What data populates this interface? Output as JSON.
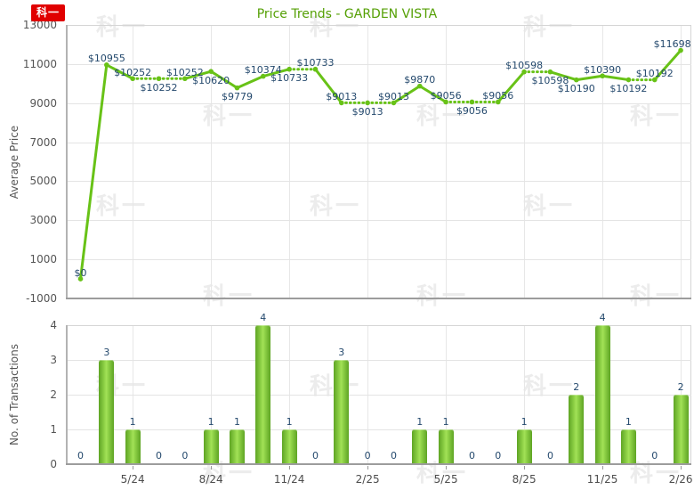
{
  "title": "Price Trends - GARDEN VISTA",
  "stamp": {
    "text": "科一"
  },
  "watermark": {
    "text": "科一"
  },
  "colors": {
    "title_green": "#55a005",
    "series_green": "#68c217",
    "bar_dark": "#5ea424",
    "bar_light": "#a2e257",
    "value_label_navy": "#24496d",
    "axis_text_gray": "#555555",
    "grid_gray": "#e4e4e4",
    "plot_border_gray": "#d5d5d5",
    "axis_line_gray": "#9c9c9c",
    "stamp_red": "#e00000"
  },
  "chart_data": [
    {
      "type": "line",
      "title": "Price Trends - GARDEN VISTA",
      "ylabel": "Average Price",
      "ylim": [
        -1000,
        13000
      ],
      "yticks": [
        13000,
        11000,
        9000,
        7000,
        5000,
        3000,
        1000,
        -1000
      ],
      "grid": true,
      "legend": "none",
      "values": [
        0,
        10955,
        10252,
        10252,
        10252,
        10620,
        9779,
        10374,
        10733,
        10733,
        9013,
        9013,
        9013,
        9870,
        9056,
        9056,
        9056,
        10598,
        10598,
        10190,
        10390,
        10192,
        10192,
        11698
      ],
      "point_labels": [
        "$0",
        "$10955",
        "$10252",
        "$10252",
        "$10252",
        "$10620",
        "$9779",
        "$10374",
        "$10733",
        "$10733",
        "$9013",
        "$9013",
        "$9013",
        "$9870",
        "$9056",
        "$9056",
        "$9056",
        "$10598",
        "$10598",
        "$10190",
        "$10390",
        "$10192",
        "$10192",
        "$11698"
      ],
      "label_side": [
        "above",
        "above",
        "above",
        "below",
        "above",
        "below",
        "below",
        "above",
        "below",
        "above",
        "above",
        "below",
        "above",
        "above",
        "above",
        "below",
        "above",
        "above",
        "below",
        "below",
        "above",
        "below",
        "above",
        "above"
      ],
      "dotted_from_prev": [
        false,
        false,
        false,
        true,
        true,
        false,
        false,
        false,
        false,
        true,
        false,
        true,
        true,
        false,
        false,
        true,
        true,
        false,
        true,
        false,
        false,
        false,
        true,
        false
      ],
      "x_tick_labels": [
        "5/24",
        "8/24",
        "11/24",
        "2/25",
        "5/25",
        "8/25",
        "11/25",
        "2/26"
      ],
      "x_tick_indices": [
        2,
        5,
        8,
        11,
        14,
        17,
        20,
        23
      ]
    },
    {
      "type": "bar",
      "ylabel": "No. of Transactions",
      "ylim": [
        0,
        4
      ],
      "yticks": [
        4,
        3,
        2,
        1,
        0
      ],
      "grid": true,
      "legend": "none",
      "values": [
        0,
        3,
        1,
        0,
        0,
        1,
        1,
        4,
        1,
        0,
        3,
        0,
        0,
        1,
        1,
        0,
        0,
        1,
        0,
        2,
        4,
        1,
        0,
        2
      ],
      "x_axis_shared": true,
      "x_tick_labels": [
        "5/24",
        "8/24",
        "11/24",
        "2/25",
        "5/25",
        "8/25",
        "11/25",
        "2/26"
      ],
      "x_tick_indices": [
        2,
        5,
        8,
        11,
        14,
        17,
        20,
        23
      ]
    }
  ]
}
